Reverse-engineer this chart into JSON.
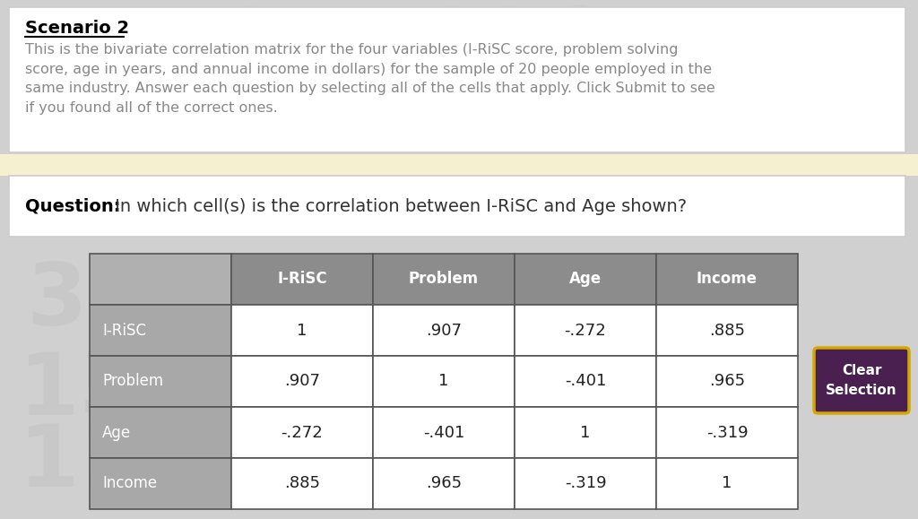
{
  "scenario_title": "Scenario 2",
  "scenario_text": "This is the bivariate correlation matrix for the four variables (I-RiSC score, problem solving\nscore, age in years, and annual income in dollars) for the sample of 20 people employed in the\nsame industry. Answer each question by selecting all of the cells that apply. Click Submit to see\nif you found all of the correct ones.",
  "question_label": "Question:",
  "question_text": " In which cell(s) is the correlation between I-RiSC and Age shown?",
  "col_headers": [
    "",
    "I-RiSC",
    "Problem",
    "Age",
    "Income"
  ],
  "row_headers": [
    "I-RiSC",
    "Problem",
    "Age",
    "Income"
  ],
  "matrix": [
    [
      "1",
      ".907",
      "-.272",
      ".885"
    ],
    [
      ".907",
      "1",
      "-.401",
      ".965"
    ],
    [
      "-.272",
      "-.401",
      "1",
      "-.319"
    ],
    [
      ".885",
      ".965",
      "-.319",
      "1"
    ]
  ],
  "header_bg": "#8c8c8c",
  "row_header_bg": "#a8a8a8",
  "cell_bg": "#ffffff",
  "header_text_color": "#ffffff",
  "row_header_text_color": "#ffffff",
  "cell_text_color": "#222222",
  "grid_color": "#555555",
  "scenario_box_bg": "#ffffff",
  "question_box_bg": "#ffffff",
  "question_strip_bg": "#f5f0d0",
  "clear_btn_bg": "#4a2050",
  "clear_btn_text": "Clear\nSelection",
  "page_bg": "#d0d0d0",
  "scenario_title_color": "#000000",
  "scenario_text_color": "#888888",
  "question_label_color": "#000000",
  "question_text_color": "#333333"
}
